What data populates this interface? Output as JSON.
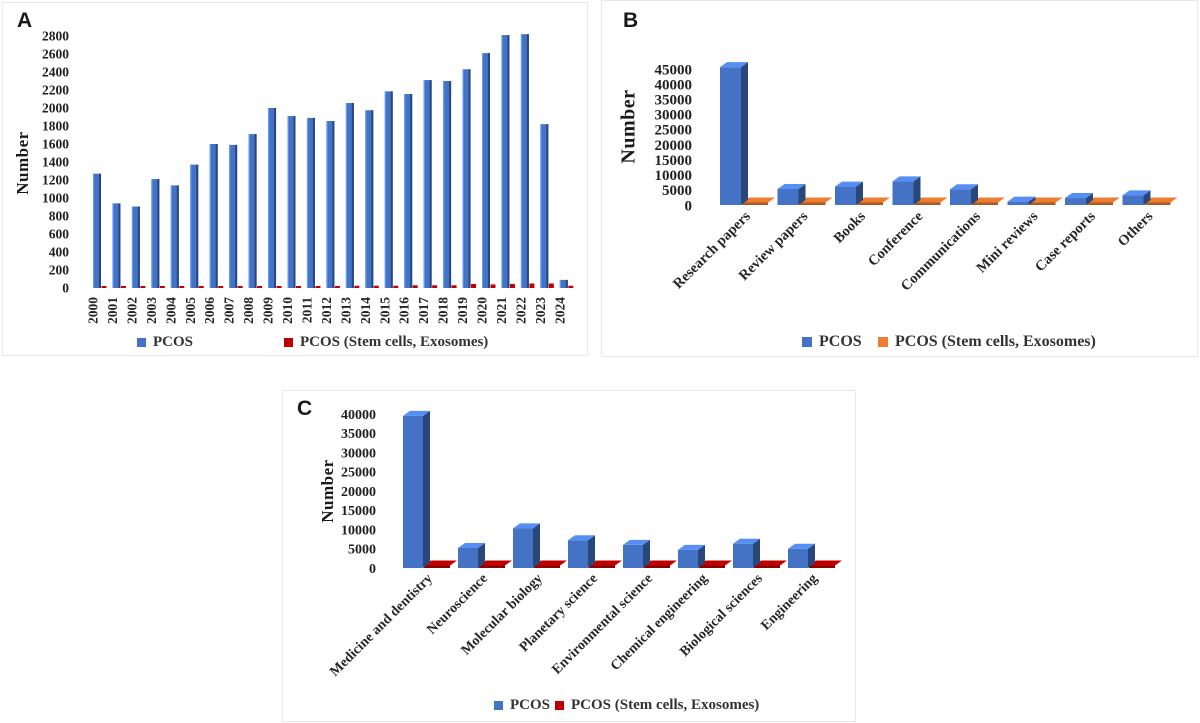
{
  "panels": [
    {
      "letter": "A",
      "ylabel": "Number"
    },
    {
      "letter": "B",
      "ylabel": "Number"
    },
    {
      "letter": "C",
      "ylabel": "Number"
    }
  ],
  "chart_data": [
    {
      "type": "bar",
      "panel": "A",
      "title": "",
      "xlabel": "",
      "ylabel": "Number",
      "ylim": [
        0,
        2800
      ],
      "ytick_step": 200,
      "yticks": [
        0,
        200,
        400,
        600,
        800,
        1000,
        1200,
        1400,
        1600,
        1800,
        2000,
        2200,
        2400,
        2600,
        2800
      ],
      "grid": false,
      "legend_position": "bottom",
      "categories": [
        "2000",
        "2001",
        "2002",
        "2003",
        "2004",
        "2005",
        "2006",
        "2007",
        "2008",
        "2009",
        "2010",
        "2011",
        "2012",
        "2013",
        "2014",
        "2015",
        "2016",
        "2017",
        "2018",
        "2019",
        "2020",
        "2021",
        "2022",
        "2023",
        "2024"
      ],
      "series": [
        {
          "name": "PCOS",
          "color": "#4472C4",
          "values": [
            1270,
            940,
            905,
            1210,
            1140,
            1370,
            1600,
            1590,
            1710,
            2000,
            1910,
            1890,
            1855,
            2055,
            1975,
            2185,
            2155,
            2310,
            2300,
            2430,
            2610,
            2810,
            2820,
            1820,
            90
          ]
        },
        {
          "name": "PCOS (Stem cells, Exosomes)",
          "color": "#C00000",
          "values": [
            15,
            15,
            15,
            15,
            15,
            15,
            20,
            20,
            20,
            20,
            20,
            20,
            20,
            25,
            25,
            25,
            30,
            30,
            30,
            45,
            40,
            45,
            50,
            50,
            25
          ]
        }
      ]
    },
    {
      "type": "bar",
      "panel": "B",
      "title": "",
      "xlabel": "",
      "ylabel": "Number",
      "ylim": [
        0,
        45000
      ],
      "ytick_step": 5000,
      "yticks": [
        0,
        5000,
        10000,
        15000,
        20000,
        25000,
        30000,
        35000,
        40000,
        45000
      ],
      "grid": false,
      "legend_position": "bottom",
      "categories": [
        "Research papers",
        "Review papers",
        "Books",
        "Conference",
        "Communications",
        "Mini reviews",
        "Case reports",
        "Others"
      ],
      "series": [
        {
          "name": "PCOS",
          "color": "#4472C4",
          "values": [
            45600,
            5300,
            6100,
            7800,
            5200,
            1100,
            2300,
            3200
          ]
        },
        {
          "name": "PCOS (Stem cells, Exosomes)",
          "color": "#ED7D31",
          "values": [
            500,
            500,
            500,
            500,
            500,
            400,
            450,
            500
          ]
        }
      ]
    },
    {
      "type": "bar",
      "panel": "C",
      "title": "",
      "xlabel": "",
      "ylabel": "Number",
      "ylim": [
        0,
        40000
      ],
      "ytick_step": 5000,
      "yticks": [
        0,
        5000,
        10000,
        15000,
        20000,
        25000,
        30000,
        35000,
        40000
      ],
      "grid": false,
      "legend_position": "bottom",
      "categories": [
        "Medicine and dentistry",
        "Neuroscience",
        "Molecular biology",
        "Planetary science",
        "Environmental science",
        "Chemical engineering",
        "Biological sciences",
        "Engineering"
      ],
      "series": [
        {
          "name": "PCOS",
          "color": "#4472C4",
          "values": [
            39500,
            5200,
            10300,
            7200,
            6000,
            4700,
            6300,
            5000
          ]
        },
        {
          "name": "PCOS (Stem cells, Exosomes)",
          "color": "#C00000",
          "values": [
            600,
            500,
            600,
            500,
            500,
            500,
            500,
            500
          ]
        }
      ]
    }
  ]
}
